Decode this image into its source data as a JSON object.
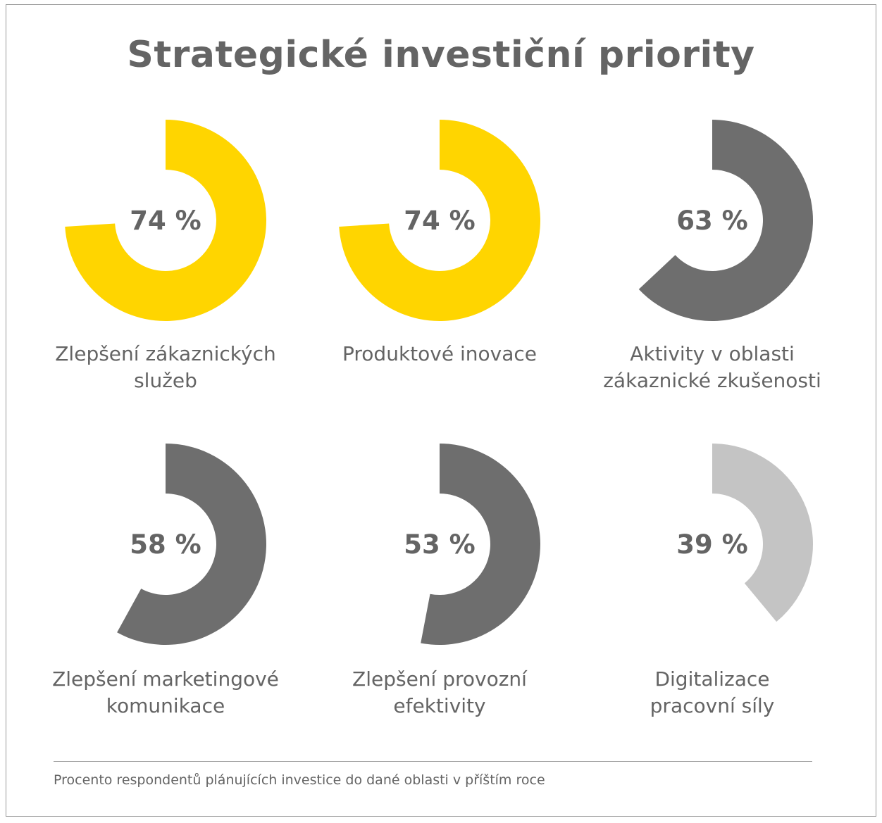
{
  "title": "Strategické investiční priority",
  "footnote": "Procento respondentů plánujících investice do dané oblasti v příštím roce",
  "colors": {
    "yellow": "#FFD500",
    "dark_gray": "#6E6E6E",
    "light_gray": "#C4C4C4",
    "text": "#646464"
  },
  "chart_data": {
    "type": "pie",
    "title": "Strategické investiční priority",
    "unit": "%",
    "categories": [
      "Zlepšení zákaznických služeb",
      "Produktové inovace",
      "Aktivity v oblasti zákaznické zkušenosti",
      "Zlepšení marketingové komunikace",
      "Zlepšení provozní efektivity",
      "Digitalizace pracovní síly"
    ],
    "values": [
      74,
      74,
      63,
      58,
      53,
      39
    ],
    "items": [
      {
        "label_lines": [
          "Zlepšení zákaznických",
          "služeb"
        ],
        "value": 74,
        "value_label": "74 %",
        "color": "#FFD500"
      },
      {
        "label_lines": [
          "Produktové inovace"
        ],
        "value": 74,
        "value_label": "74 %",
        "color": "#FFD500"
      },
      {
        "label_lines": [
          "Aktivity v oblasti",
          "zákaznické zkušenosti"
        ],
        "value": 63,
        "value_label": "63 %",
        "color": "#6E6E6E"
      },
      {
        "label_lines": [
          "Zlepšení marketingové",
          "komunikace"
        ],
        "value": 58,
        "value_label": "58 %",
        "color": "#6E6E6E"
      },
      {
        "label_lines": [
          "Zlepšení provozní",
          "efektivity"
        ],
        "value": 53,
        "value_label": "53 %",
        "color": "#6E6E6E"
      },
      {
        "label_lines": [
          "Digitalizace",
          "pracovní síly"
        ],
        "value": 39,
        "value_label": "39 %",
        "color": "#C4C4C4"
      }
    ]
  }
}
